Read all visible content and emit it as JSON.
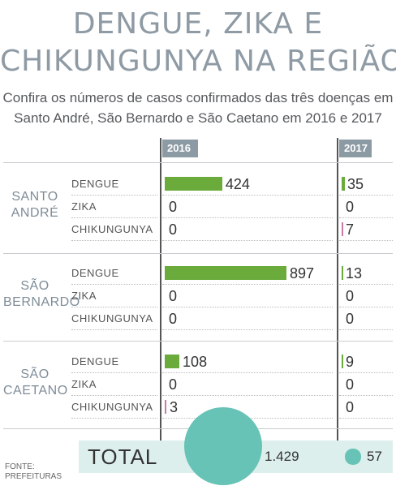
{
  "title_line1": "DENGUE, ZIKA E",
  "title_line2": "CHIKUNGUNYA NA REGIÃO",
  "subtitle_line1": "Confira os números de casos confirmados das três doenças em",
  "subtitle_line2": "Santo André, São Bernardo e São Caetano em 2016 e 2017",
  "source_line1": "FONTE:",
  "source_line2": "PREFEITURAS",
  "colors": {
    "title": "#8e9aa4",
    "header": "#8c9aa3",
    "dengue_bar": "#6aab3c",
    "chikungunya_bar": "#c77ba6",
    "total_band": "#dcefec",
    "total_circle": "#66c3b6"
  },
  "chart_data": {
    "type": "bar",
    "years": [
      "2016",
      "2017"
    ],
    "groups": [
      {
        "name_lines": [
          "SANTO",
          "ANDRÉ"
        ],
        "rows": [
          {
            "label": "DENGUE",
            "v2016": 424,
            "v2017": 35
          },
          {
            "label": "ZIKA",
            "v2016": 0,
            "v2017": 0
          },
          {
            "label": "CHIKUNGUNYA",
            "v2016": 0,
            "v2017": 7
          }
        ]
      },
      {
        "name_lines": [
          "SÃO",
          "BERNARDO"
        ],
        "rows": [
          {
            "label": "DENGUE",
            "v2016": 897,
            "v2017": 13
          },
          {
            "label": "ZIKA",
            "v2016": 0,
            "v2017": 0
          },
          {
            "label": "CHIKUNGUNYA",
            "v2016": 0,
            "v2017": 0
          }
        ]
      },
      {
        "name_lines": [
          "SÃO",
          "CAETANO"
        ],
        "rows": [
          {
            "label": "DENGUE",
            "v2016": 108,
            "v2017": 9
          },
          {
            "label": "ZIKA",
            "v2016": 0,
            "v2017": 0
          },
          {
            "label": "CHIKUNGUNYA",
            "v2016": 3,
            "v2017": 0
          }
        ]
      }
    ],
    "total": {
      "label": "TOTAL",
      "v2016": 1429,
      "v2016_text": "1.429",
      "v2017": 57,
      "v2017_text": "57"
    }
  }
}
